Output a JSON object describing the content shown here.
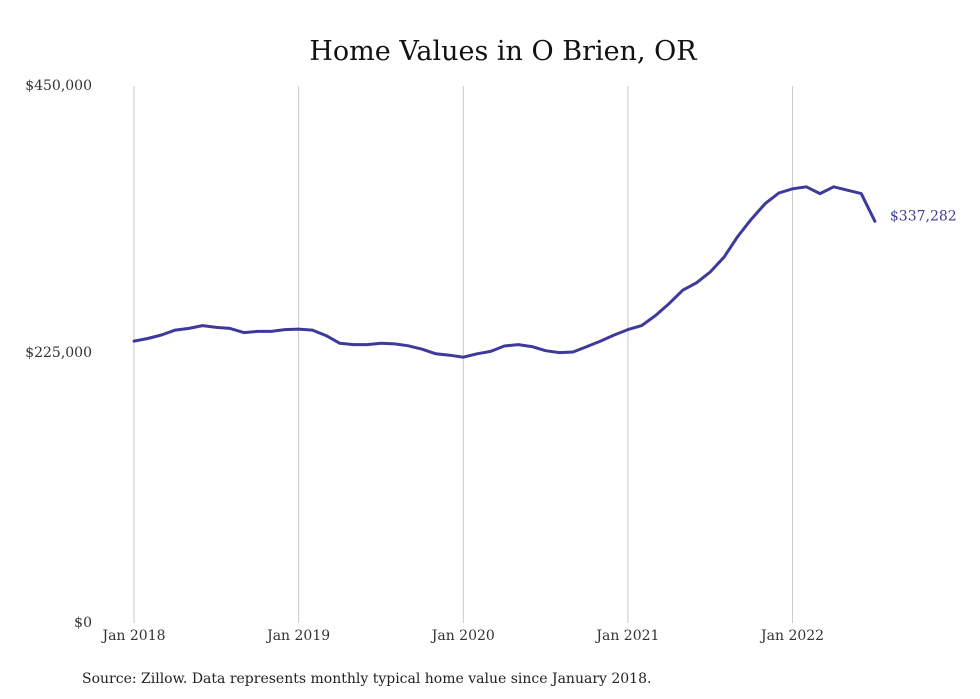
{
  "chart_data": {
    "type": "line",
    "title": "Home Values in O Brien, OR",
    "ylim": [
      0,
      450000
    ],
    "y_ticks": [
      {
        "value": 450000,
        "label": "$450,000"
      },
      {
        "value": 225000,
        "label": "$225,000"
      },
      {
        "value": 0,
        "label": "$0"
      }
    ],
    "x_ticks": [
      {
        "value": "2018-01",
        "label": "Jan 2018"
      },
      {
        "value": "2019-01",
        "label": "Jan 2019"
      },
      {
        "value": "2020-01",
        "label": "Jan 2020"
      },
      {
        "value": "2021-01",
        "label": "Jan 2021"
      },
      {
        "value": "2022-01",
        "label": "Jan 2022"
      }
    ],
    "grid": "vertical",
    "series": [
      {
        "color": "#3d3a9c",
        "x": [
          "2018-01",
          "2018-02",
          "2018-03",
          "2018-04",
          "2018-05",
          "2018-06",
          "2018-07",
          "2018-08",
          "2018-09",
          "2018-10",
          "2018-11",
          "2018-12",
          "2019-01",
          "2019-02",
          "2019-03",
          "2019-04",
          "2019-05",
          "2019-06",
          "2019-07",
          "2019-08",
          "2019-09",
          "2019-10",
          "2019-11",
          "2019-12",
          "2020-01",
          "2020-02",
          "2020-03",
          "2020-04",
          "2020-05",
          "2020-06",
          "2020-07",
          "2020-08",
          "2020-09",
          "2020-10",
          "2020-11",
          "2020-12",
          "2021-01",
          "2021-02",
          "2021-03",
          "2021-04",
          "2021-05",
          "2021-06",
          "2021-07",
          "2021-08",
          "2021-09",
          "2021-10",
          "2021-11",
          "2021-12",
          "2022-01",
          "2022-02",
          "2022-03",
          "2022-04",
          "2022-05",
          "2022-06",
          "2022-07"
        ],
        "values": [
          237400,
          239600,
          242500,
          246600,
          248000,
          250300,
          248800,
          248000,
          244500,
          245500,
          245500,
          247000,
          247400,
          246600,
          242000,
          235600,
          234500,
          234500,
          235600,
          235100,
          233500,
          230700,
          226800,
          225700,
          224000,
          226800,
          228800,
          233300,
          234500,
          232800,
          229400,
          227800,
          228300,
          232800,
          237400,
          242500,
          247000,
          250300,
          258700,
          268700,
          279800,
          286000,
          295000,
          307300,
          324600,
          339100,
          351900,
          360800,
          364300,
          366000,
          360300,
          366000,
          363200,
          360300,
          337282
        ]
      }
    ],
    "end_label": "$337,282",
    "source": "Source: Zillow. Data represents monthly typical home value since January 2018."
  }
}
